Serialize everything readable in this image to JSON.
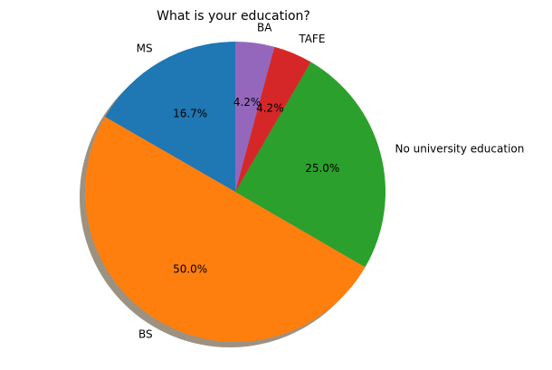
{
  "chart_data": {
    "type": "pie",
    "title": "What is your education?",
    "labels": [
      "MS",
      "BS",
      "No university education",
      "TAFE",
      "BA"
    ],
    "values": [
      16.7,
      50.0,
      25.0,
      4.2,
      4.2
    ],
    "pct_labels": [
      "16.7%",
      "50.0%",
      "25.0%",
      "4.2%",
      "4.2%"
    ],
    "colors": [
      "#1f77b4",
      "#ff7f0e",
      "#2ca02c",
      "#d62728",
      "#9467bd"
    ],
    "start_angle_deg": 90,
    "direction": "counterclockwise",
    "shadow": true
  }
}
